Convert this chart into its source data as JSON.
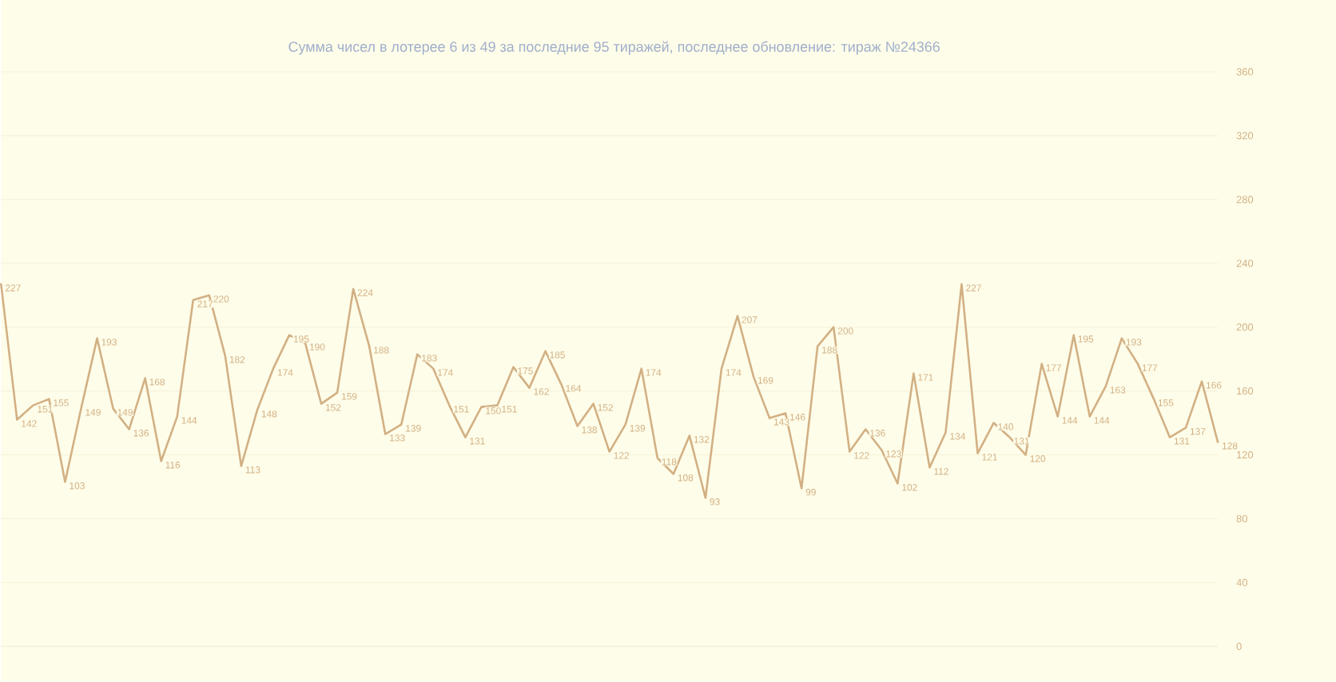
{
  "chart_data": {
    "type": "line",
    "title": "Сумма чисел в лотерее 6 из 49 за последние 95 тиражей, последнее обновление: тираж №24366",
    "categories": [
      null,
      null,
      null,
      null,
      null,
      null,
      null,
      null,
      null,
      null,
      null,
      null,
      null,
      null,
      null,
      null,
      null,
      null,
      null,
      null,
      null,
      null,
      null,
      null,
      null,
      null,
      null,
      null,
      null,
      null,
      null,
      null,
      null,
      null,
      null,
      null,
      null,
      null,
      null,
      null,
      null,
      null,
      null,
      null,
      null,
      null,
      null,
      null,
      null,
      null,
      null,
      null,
      null,
      null,
      null,
      null,
      null,
      null,
      null,
      null,
      null,
      null,
      null,
      null,
      null,
      null,
      null,
      null,
      null,
      null,
      null,
      null,
      null,
      null,
      null,
      null,
      null
    ],
    "values": [
      227,
      142,
      151,
      155,
      103,
      149,
      193,
      149,
      136,
      168,
      116,
      144,
      217,
      220,
      182,
      113,
      148,
      174,
      195,
      190,
      152,
      159,
      224,
      188,
      133,
      139,
      183,
      174,
      151,
      131,
      150,
      151,
      175,
      162,
      185,
      164,
      138,
      152,
      122,
      139,
      174,
      118,
      108,
      132,
      93,
      174,
      207,
      169,
      143,
      146,
      99,
      188,
      200,
      122,
      136,
      123,
      102,
      171,
      112,
      134,
      227,
      121,
      140,
      131,
      120,
      177,
      144,
      195,
      144,
      163,
      193,
      177,
      155,
      131,
      137,
      166,
      128
    ],
    "color": "#d2b084",
    "ylim": [
      0,
      360
    ],
    "yticks": [
      0,
      40,
      80,
      120,
      160,
      200,
      240,
      280,
      320,
      360
    ],
    "grid": "y",
    "tick_labels": "y",
    "marker": "none",
    "line_style": "solid",
    "data_labels": true
  }
}
